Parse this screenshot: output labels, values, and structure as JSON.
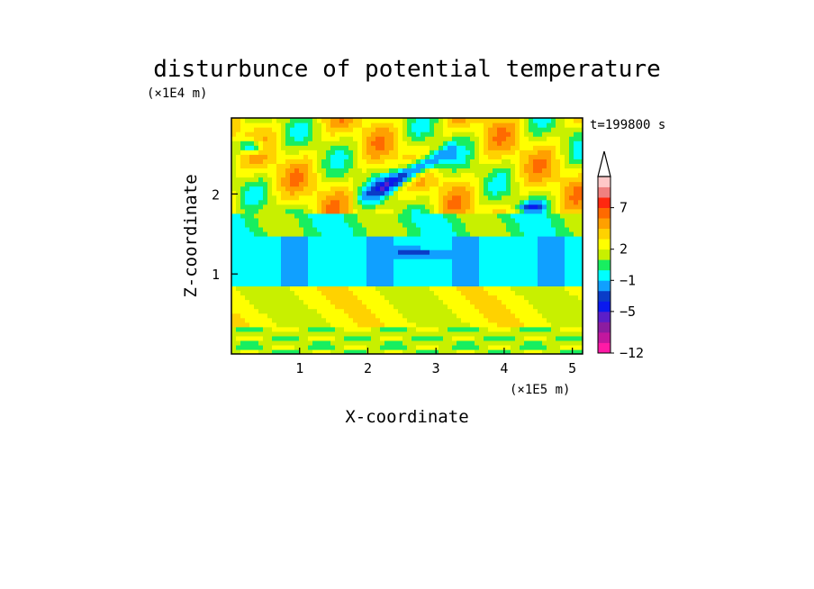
{
  "chart_data": {
    "type": "heatmap",
    "title": "disturbunce of potential temperature",
    "xlabel": "X-coordinate",
    "ylabel": "Z-coordinate",
    "x_unit": "(×1E5 m)",
    "y_unit": "(×1E4 m)",
    "time_label": "t=199800 s",
    "xlim": [
      0,
      5.15
    ],
    "ylim": [
      0,
      2.95
    ],
    "x_ticks": [
      "1",
      "2",
      "3",
      "4",
      "5"
    ],
    "y_ticks": [
      "1",
      "2"
    ],
    "colorbar": {
      "levels": [
        -12,
        -11,
        -9,
        -7,
        -5,
        -4,
        -3,
        -1,
        0,
        1,
        2,
        3,
        4,
        5,
        7,
        8,
        9,
        10
      ],
      "colors": [
        "#ff1aa6",
        "#c2179e",
        "#8c1ca0",
        "#5b1ec8",
        "#0a19ee",
        "#0a3cc8",
        "#10a0ff",
        "#00ffff",
        "#18ee60",
        "#c8f000",
        "#ffff00",
        "#ffd200",
        "#ffa000",
        "#ff6a00",
        "#ff2810",
        "#f08080",
        "#ffc8c8"
      ],
      "tick_labels": [
        "7",
        "2",
        "−1",
        "−5",
        "−12"
      ]
    }
  }
}
